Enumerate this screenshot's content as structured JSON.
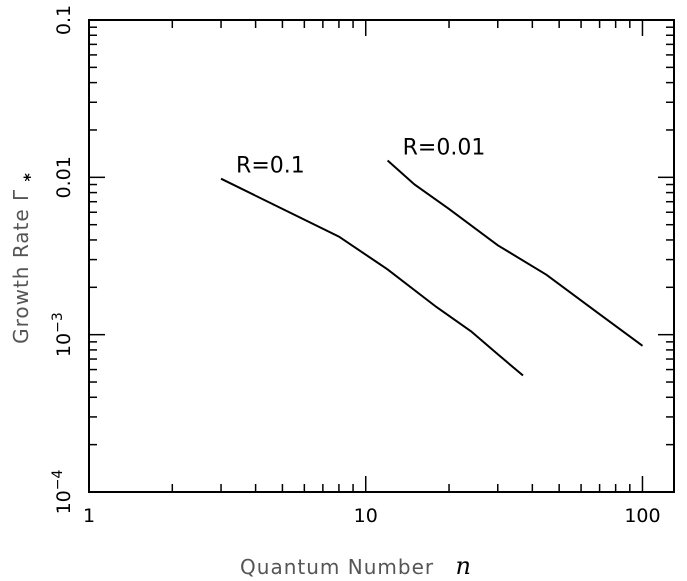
{
  "chart_data": {
    "type": "line",
    "title": "",
    "xlabel": "Quantum Number",
    "xlabel_symbol": "n",
    "ylabel": "Growth Rate Γ",
    "ylabel_subscript": "*",
    "x_scale": "log",
    "y_scale": "log",
    "xlim": [
      1,
      130
    ],
    "ylim": [
      0.0001,
      0.1
    ],
    "x_ticks": [
      "1",
      "10",
      "100"
    ],
    "y_ticks": [
      "0.1",
      "0.01",
      "10^-3",
      "10^-4"
    ],
    "grid": false,
    "legend": "none",
    "series": [
      {
        "name": "R=0.1",
        "color": "#000000",
        "x": [
          3,
          5,
          8,
          12,
          18,
          24,
          30,
          37
        ],
        "y": [
          0.0098,
          0.0063,
          0.0042,
          0.0026,
          0.0015,
          0.00105,
          0.00075,
          0.00055
        ]
      },
      {
        "name": "R=0.01",
        "color": "#000000",
        "x": [
          12,
          15,
          20,
          30,
          45,
          70,
          100
        ],
        "y": [
          0.0128,
          0.009,
          0.0063,
          0.0037,
          0.0024,
          0.00135,
          0.00085
        ]
      }
    ]
  }
}
